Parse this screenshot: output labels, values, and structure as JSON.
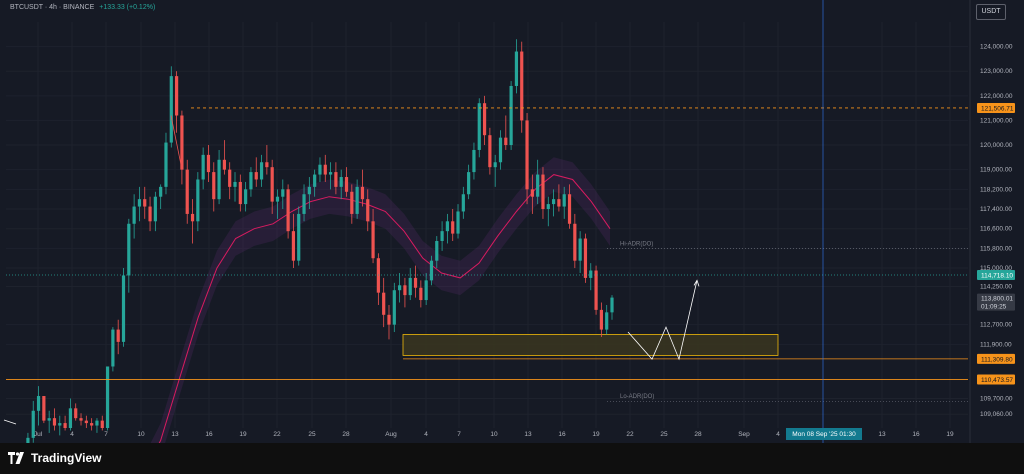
{
  "header": {
    "symbol": "BTCUSDT · 4h · BINANCE",
    "change": "+133.33 (+0.12%)",
    "currency": "USDT"
  },
  "footer": {
    "brand": "TradingView"
  },
  "colors": {
    "background": "#161a25",
    "bull": "#26a69a",
    "bear": "#ef5350",
    "grid": "#1e222d",
    "ma_line": "#d81b60",
    "zone_fill": "#3a3620",
    "zone_border": "#f0b90b",
    "level_orange": "#f7931a",
    "current_price": "#26a69a",
    "crosshair": "#3179f5"
  },
  "chart_data": {
    "type": "candlestick",
    "symbol": "BTCUSDT",
    "timeframe": "4h",
    "exchange": "BINANCE",
    "y_axis_ticks": [
      "124,000.00",
      "123,000.00",
      "122,000.00",
      "121,000.00",
      "120,000.00",
      "119,000.00",
      "118,200.00",
      "117,400.00",
      "116,600.00",
      "115,800.00",
      "115,000.00",
      "114,250.00",
      "112,700.00",
      "111,900.00",
      "109,700.00",
      "109,060.00"
    ],
    "x_axis_ticks": [
      "Jul",
      "4",
      "7",
      "10",
      "13",
      "16",
      "19",
      "22",
      "25",
      "28",
      "Aug",
      "4",
      "7",
      "10",
      "13",
      "16",
      "19",
      "22",
      "25",
      "28",
      "Sep",
      "4",
      "13",
      "16",
      "19"
    ],
    "crosshair_date_label": "Mon 08 Sep '25 01:30",
    "ylim": [
      108500,
      125000
    ],
    "candles_ohlc": [
      [
        106400,
        107500,
        106100,
        106700
      ],
      [
        106700,
        107300,
        106200,
        107000
      ],
      [
        107000,
        107600,
        106600,
        107300
      ],
      [
        107300,
        108300,
        107000,
        108100
      ],
      [
        108100,
        109600,
        107900,
        109200
      ],
      [
        109200,
        110200,
        108600,
        109800
      ],
      [
        109800,
        109600,
        108700,
        108800
      ],
      [
        108800,
        109200,
        108300,
        108900
      ],
      [
        108900,
        109300,
        108400,
        108600
      ],
      [
        108600,
        109000,
        108200,
        108700
      ],
      [
        108700,
        109000,
        108400,
        108500
      ],
      [
        108500,
        109700,
        108400,
        109300
      ],
      [
        109300,
        109500,
        108800,
        108900
      ],
      [
        108900,
        109100,
        108600,
        108800
      ],
      [
        108800,
        109000,
        108500,
        108700
      ],
      [
        108700,
        108900,
        108400,
        108600
      ],
      [
        108600,
        108900,
        108300,
        108800
      ],
      [
        108800,
        109000,
        108400,
        108500
      ],
      [
        108500,
        110000,
        108400,
        111000
      ],
      [
        111000,
        112600,
        110800,
        112500
      ],
      [
        112500,
        112900,
        111500,
        112000
      ],
      [
        112000,
        115000,
        111800,
        114700
      ],
      [
        114700,
        117000,
        114000,
        116800
      ],
      [
        116800,
        118000,
        116200,
        117500
      ],
      [
        117500,
        118300,
        116900,
        117800
      ],
      [
        117800,
        118300,
        117000,
        117500
      ],
      [
        117500,
        117900,
        116500,
        116900
      ],
      [
        116900,
        118100,
        116500,
        117900
      ],
      [
        117900,
        118400,
        117400,
        118300
      ],
      [
        118300,
        120500,
        118000,
        120100
      ],
      [
        120100,
        123200,
        119900,
        122800
      ],
      [
        122800,
        123000,
        120500,
        121200
      ],
      [
        121200,
        121400,
        118400,
        119000
      ],
      [
        119000,
        119400,
        116800,
        117200
      ],
      [
        117200,
        117800,
        116000,
        116900
      ],
      [
        116900,
        118900,
        116500,
        118600
      ],
      [
        118600,
        119900,
        118200,
        119600
      ],
      [
        119600,
        120000,
        118500,
        118900
      ],
      [
        118900,
        119300,
        117300,
        117800
      ],
      [
        117800,
        119800,
        117600,
        119400
      ],
      [
        119400,
        120200,
        118800,
        119000
      ],
      [
        119000,
        119300,
        117800,
        118300
      ],
      [
        118300,
        118900,
        117700,
        118500
      ],
      [
        118500,
        118800,
        117300,
        117600
      ],
      [
        117600,
        118500,
        117300,
        118200
      ],
      [
        118200,
        119100,
        117900,
        118900
      ],
      [
        118900,
        119500,
        118300,
        118600
      ],
      [
        118600,
        119600,
        118300,
        119300
      ],
      [
        119300,
        120000,
        118800,
        119100
      ],
      [
        119100,
        119400,
        117200,
        117700
      ],
      [
        117700,
        118200,
        117000,
        117900
      ],
      [
        117900,
        118600,
        117400,
        118200
      ],
      [
        118200,
        118400,
        116200,
        116500
      ],
      [
        116500,
        117200,
        115000,
        115300
      ],
      [
        115300,
        117500,
        115100,
        117200
      ],
      [
        117200,
        118400,
        116900,
        118000
      ],
      [
        118000,
        118700,
        117400,
        118300
      ],
      [
        118300,
        119000,
        117900,
        118800
      ],
      [
        118800,
        119500,
        118500,
        119200
      ],
      [
        119200,
        119600,
        118500,
        118800
      ],
      [
        118800,
        119300,
        118200,
        118900
      ],
      [
        118900,
        119300,
        118000,
        118300
      ],
      [
        118300,
        119000,
        117800,
        118700
      ],
      [
        118700,
        119100,
        117900,
        118100
      ],
      [
        118100,
        118400,
        116800,
        117200
      ],
      [
        117200,
        118600,
        117000,
        118300
      ],
      [
        118300,
        119000,
        117500,
        117800
      ],
      [
        117800,
        118200,
        116500,
        116900
      ],
      [
        116900,
        117400,
        115200,
        115400
      ],
      [
        115400,
        115600,
        113500,
        114000
      ],
      [
        114000,
        114600,
        112600,
        113100
      ],
      [
        113100,
        113500,
        112100,
        112700
      ],
      [
        112700,
        114400,
        112400,
        114100
      ],
      [
        114100,
        114800,
        113600,
        114300
      ],
      [
        114300,
        114600,
        113400,
        113900
      ],
      [
        113900,
        115000,
        113700,
        114600
      ],
      [
        114600,
        115100,
        113800,
        114200
      ],
      [
        114200,
        114500,
        113400,
        113700
      ],
      [
        113700,
        114800,
        113500,
        114500
      ],
      [
        114500,
        115500,
        114300,
        115300
      ],
      [
        115300,
        116300,
        115000,
        116100
      ],
      [
        116100,
        116900,
        115700,
        116500
      ],
      [
        116500,
        117200,
        116000,
        116900
      ],
      [
        116900,
        117400,
        116100,
        116400
      ],
      [
        116400,
        117600,
        116200,
        117300
      ],
      [
        117300,
        118300,
        117000,
        118000
      ],
      [
        118000,
        119200,
        117800,
        118900
      ],
      [
        118900,
        120100,
        118600,
        119800
      ],
      [
        119800,
        121900,
        119500,
        121700
      ],
      [
        121700,
        122000,
        120000,
        120400
      ],
      [
        120400,
        120700,
        118800,
        119100
      ],
      [
        119100,
        119600,
        118300,
        119300
      ],
      [
        119300,
        120600,
        119000,
        120300
      ],
      [
        120300,
        121200,
        119800,
        120000
      ],
      [
        120000,
        122600,
        119800,
        122400
      ],
      [
        122400,
        124300,
        122100,
        123800
      ],
      [
        123800,
        124200,
        120500,
        121000
      ],
      [
        121000,
        121300,
        117600,
        118200
      ],
      [
        118200,
        118800,
        117200,
        117900
      ],
      [
        117900,
        119400,
        117600,
        118800
      ],
      [
        118800,
        119100,
        117000,
        117400
      ],
      [
        117400,
        117900,
        116700,
        117600
      ],
      [
        117600,
        118200,
        117100,
        117800
      ],
      [
        117800,
        118400,
        117300,
        117500
      ],
      [
        117500,
        118300,
        117000,
        118000
      ],
      [
        118000,
        118400,
        116600,
        116800
      ],
      [
        116800,
        117200,
        115000,
        115300
      ],
      [
        115300,
        116500,
        114800,
        116200
      ],
      [
        116200,
        116400,
        114400,
        114600
      ],
      [
        114600,
        115200,
        114100,
        114900
      ],
      [
        114900,
        115100,
        113100,
        113300
      ],
      [
        113300,
        113600,
        112200,
        112500
      ],
      [
        112500,
        113500,
        112300,
        113200
      ],
      [
        113200,
        113900,
        112900,
        113800
      ]
    ],
    "moving_average": [
      106500,
      108000,
      110500,
      113000,
      115000,
      116200,
      116600,
      116800,
      117300,
      117700,
      117900,
      117800,
      117600,
      117300,
      116500,
      115400,
      114800,
      114600,
      115200,
      116300,
      117300,
      118200,
      118800,
      118600,
      117700,
      116600
    ],
    "levels": [
      {
        "label": "121,506.71",
        "price": 121506.71,
        "style": "dashed",
        "color": "#f7931a"
      },
      {
        "label": "114,718.10",
        "price": 114718.1,
        "style": "dotted",
        "color": "#26a69a"
      },
      {
        "label": "113,800.01",
        "price": 113800.01,
        "style": "current",
        "color": "#363a45"
      },
      {
        "label": "111,309.80",
        "price": 111309.8,
        "style": "solid",
        "color": "#f7931a"
      },
      {
        "label": "110,473.57",
        "price": 110473.57,
        "style": "solid",
        "color": "#f7931a"
      }
    ],
    "countdown": "01:09:25",
    "annotations": [
      {
        "text": "Hi-ADR(DO)",
        "price": 115950
      },
      {
        "text": "Lo-ADR(DO)",
        "price": 109750
      }
    ],
    "demand_zone": {
      "top": 112300,
      "bottom": 111450
    },
    "projected_path": [
      [
        112400,
        0
      ],
      [
        111300,
        1
      ],
      [
        112600,
        2
      ],
      [
        111300,
        3
      ],
      [
        114500,
        4
      ]
    ]
  }
}
